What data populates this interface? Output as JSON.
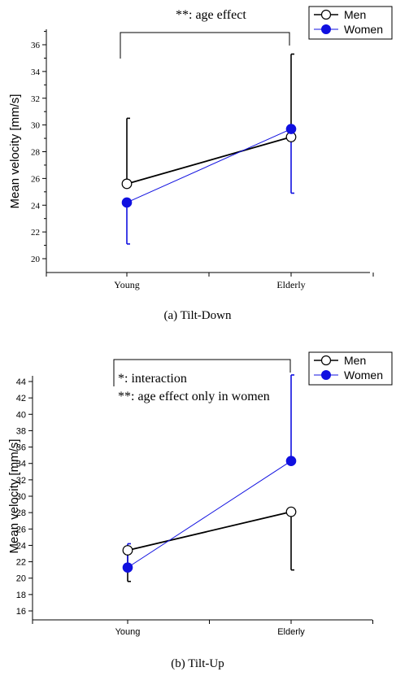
{
  "colors": {
    "men": "#000000",
    "women": "#1010e0"
  },
  "chart_data": [
    {
      "type": "line",
      "caption": "(a) Tilt-Down",
      "ylabel": "Mean velocity [mm/s]",
      "xlabel": "",
      "categories": [
        "Young",
        "Elderly"
      ],
      "ylim": [
        19,
        37
      ],
      "yticks": [
        20,
        22,
        24,
        26,
        28,
        30,
        32,
        34,
        36
      ],
      "annotation": [
        "**: age effect"
      ],
      "legend_position": "top-right",
      "series": [
        {
          "name": "Men",
          "marker": "open-circle",
          "values": [
            25.6,
            29.1
          ],
          "err_up": [
            30.5,
            35.3
          ],
          "err_down": [
            null,
            null
          ]
        },
        {
          "name": "Women",
          "marker": "filled-circle",
          "values": [
            24.2,
            29.7
          ],
          "err_up": [
            null,
            null
          ],
          "err_down": [
            21.1,
            24.9
          ]
        }
      ]
    },
    {
      "type": "line",
      "caption": "(b) Tilt-Up",
      "ylabel": "Mean velocity [mm/s]",
      "xlabel": "",
      "categories": [
        "Young",
        "Elderly"
      ],
      "ylim": [
        15,
        45
      ],
      "yticks": [
        16,
        18,
        20,
        22,
        24,
        26,
        28,
        30,
        32,
        34,
        36,
        38,
        40,
        42,
        44
      ],
      "annotation": [
        "*: interaction",
        "**: age effect only in women"
      ],
      "legend_position": "top-right",
      "series": [
        {
          "name": "Men",
          "marker": "open-circle",
          "values": [
            23.4,
            28.1
          ],
          "err_up": [
            null,
            null
          ],
          "err_down": [
            19.6,
            21.0
          ]
        },
        {
          "name": "Women",
          "marker": "filled-circle",
          "values": [
            21.3,
            34.3
          ],
          "err_up": [
            24.2,
            44.8
          ],
          "err_down": [
            null,
            null
          ]
        }
      ]
    }
  ]
}
